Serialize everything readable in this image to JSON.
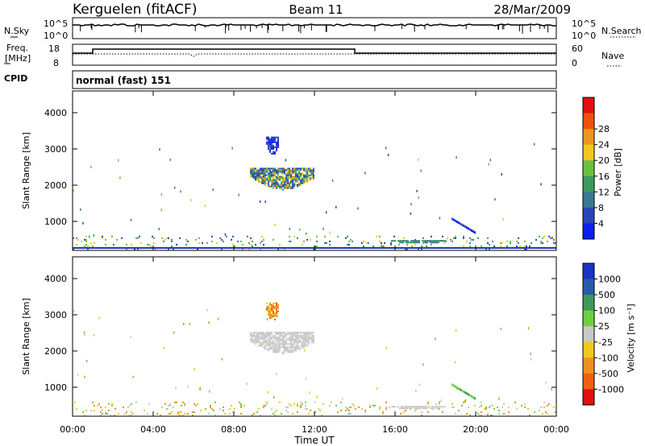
{
  "header": {
    "station": "Kerguelen (fitACF)",
    "beam": "Beam 11",
    "date": "28/Mar/2009"
  },
  "noise_panel": {
    "left_label": "N.Sky",
    "right_label": "N.Search",
    "left_ticks": [
      "10^5",
      "10^0"
    ],
    "right_ticks": [
      "10^5",
      "10^0"
    ]
  },
  "freq_panel": {
    "left_label_1": "Freq.",
    "left_label_2": "[MHz]",
    "right_label": "Nave",
    "left_ticks": [
      "18",
      "8"
    ],
    "right_ticks": [
      "60",
      "0"
    ]
  },
  "cpid": {
    "label": "CPID",
    "value": "normal (fast) 151"
  },
  "x_axis": {
    "ticks": [
      "00:00",
      "04:00",
      "08:00",
      "12:00",
      "16:00",
      "20:00",
      "00:00"
    ],
    "label": "Time UT"
  },
  "chart_data": [
    {
      "type": "heatmap",
      "name": "power",
      "ylabel": "Slant Range [km]",
      "yticks": [
        1000,
        2000,
        3000,
        4000
      ],
      "ylim": [
        200,
        4600
      ],
      "xlim": [
        0,
        24
      ],
      "colorbar": {
        "label": "Power [dB]",
        "ticks": [
          "4",
          "8",
          "12",
          "16",
          "20",
          "24",
          "28"
        ],
        "colors": [
          "#0a1ef0",
          "#2a44b8",
          "#3a7a8e",
          "#3c9a5e",
          "#6cc040",
          "#f0c81e",
          "#f0961e",
          "#ee5010",
          "#e21010"
        ]
      },
      "regions": [
        {
          "t0": 8.8,
          "t1": 12.0,
          "r0": 1850,
          "r1": 2450,
          "palette": "mix_power"
        },
        {
          "t0": 9.6,
          "t1": 10.2,
          "r0": 2800,
          "r1": 3300,
          "palette": "blue"
        },
        {
          "t0": 0.0,
          "t1": 24.0,
          "r0": 200,
          "r1": 600,
          "palette": "sparse_blue"
        },
        {
          "t0": 15.8,
          "t1": 18.5,
          "r0": 350,
          "r1": 480,
          "palette": "green"
        },
        {
          "t0": 18.8,
          "t1": 20.0,
          "r0": 700,
          "r1": 1100,
          "palette": "blue_arc"
        }
      ]
    },
    {
      "type": "heatmap",
      "name": "velocity",
      "ylabel": "Slant Range [km]",
      "yticks": [
        1000,
        2000,
        3000,
        4000
      ],
      "ylim": [
        200,
        4600
      ],
      "xlim": [
        0,
        24
      ],
      "colorbar": {
        "label": "Velocity [m s⁻¹]",
        "ticks": [
          "1000",
          "500",
          "100",
          "25",
          "-25",
          "-100",
          "-500",
          "-1000"
        ],
        "colors": [
          "#1a32c8",
          "#2a5aa8",
          "#3c9a5e",
          "#6cd040",
          "#c8c8c8",
          "#f0c81e",
          "#f09020",
          "#f06010",
          "#e21010"
        ]
      },
      "regions": [
        {
          "t0": 8.8,
          "t1": 12.0,
          "r0": 1900,
          "r1": 2500,
          "palette": "grey"
        },
        {
          "t0": 9.6,
          "t1": 10.2,
          "r0": 2800,
          "r1": 3300,
          "palette": "orange"
        },
        {
          "t0": 0.0,
          "t1": 24.0,
          "r0": 200,
          "r1": 600,
          "palette": "sparse_yellow"
        },
        {
          "t0": 15.8,
          "t1": 18.5,
          "r0": 350,
          "r1": 480,
          "palette": "grey"
        },
        {
          "t0": 18.8,
          "t1": 20.0,
          "r0": 700,
          "r1": 1100,
          "palette": "green_arc"
        }
      ]
    }
  ]
}
